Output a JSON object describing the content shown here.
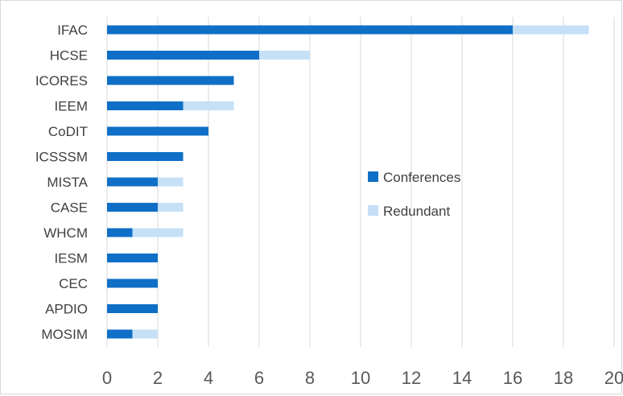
{
  "chart_data": {
    "type": "bar",
    "orientation": "horizontal",
    "stacked": true,
    "categories": [
      "IFAC",
      "HCSE",
      "ICORES",
      "IEEM",
      "CoDIT",
      "ICSSSM",
      "MISTA",
      "CASE",
      "WHCM",
      "IESM",
      "CEC",
      "APDIO",
      "MOSIM"
    ],
    "series": [
      {
        "name": "Conferences",
        "color": "#0f6fc6",
        "values": [
          16,
          6,
          5,
          3,
          4,
          3,
          2,
          2,
          1,
          2,
          2,
          2,
          1
        ]
      },
      {
        "name": "Redundant",
        "color": "#c5e0f7",
        "values": [
          3,
          2,
          0,
          2,
          0,
          0,
          1,
          1,
          2,
          0,
          0,
          0,
          1
        ]
      }
    ],
    "xlim": [
      0,
      20
    ],
    "xticks": [
      "0",
      "2",
      "4",
      "6",
      "8",
      "10",
      "12",
      "14",
      "16",
      "18",
      "20"
    ],
    "grid": "vertical",
    "legend_position": "center-right",
    "title": "",
    "xlabel": "",
    "ylabel": ""
  }
}
